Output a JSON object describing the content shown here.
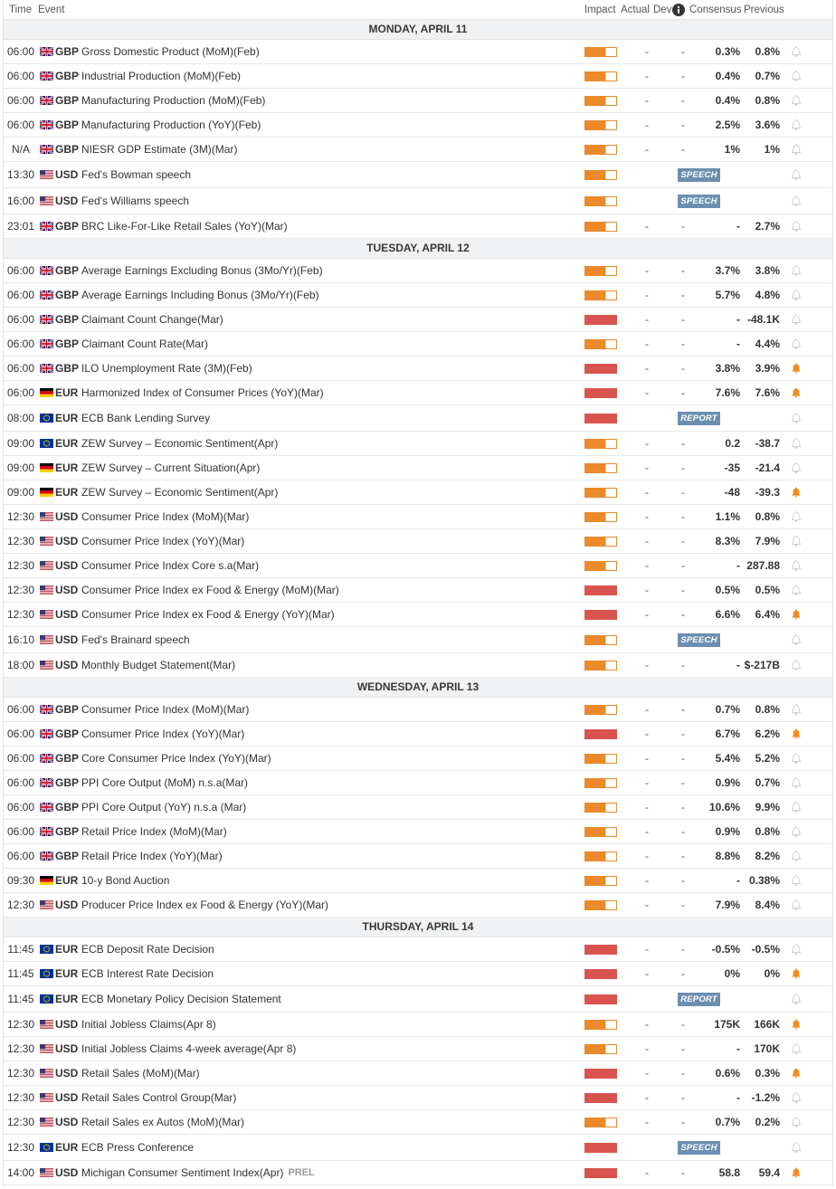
{
  "header": {
    "time": "Time",
    "event": "Event",
    "impact": "Impact",
    "actual": "Actual",
    "dev": "Dev",
    "consensus": "Consensus",
    "previous": "Previous",
    "info_icon": "info-icon"
  },
  "colors": {
    "impact_medium": "#ea8a2b",
    "impact_high": "#d9544f",
    "badge": "#6c8fb0",
    "alert_on": "#f28c22",
    "alert_off": "#cdcdcd",
    "day_header_bg": "#f0f1f2",
    "text": "#333333"
  },
  "days": [
    {
      "label": "MONDAY, APRIL 11",
      "events": [
        {
          "time": "06:00",
          "flag": "uk-flag",
          "currency": "GBP",
          "event": "Gross Domestic Product (MoM)(Feb)",
          "impact": 2,
          "actual": "-",
          "dev": "-",
          "consensus": "0.3%",
          "previous": "0.8%",
          "alert": false
        },
        {
          "time": "06:00",
          "flag": "uk-flag",
          "currency": "GBP",
          "event": "Industrial Production (MoM)(Feb)",
          "impact": 2,
          "actual": "-",
          "dev": "-",
          "consensus": "0.4%",
          "previous": "0.7%",
          "alert": false
        },
        {
          "time": "06:00",
          "flag": "uk-flag",
          "currency": "GBP",
          "event": "Manufacturing Production (MoM)(Feb)",
          "impact": 2,
          "actual": "-",
          "dev": "-",
          "consensus": "0.4%",
          "previous": "0.8%",
          "alert": false
        },
        {
          "time": "06:00",
          "flag": "uk-flag",
          "currency": "GBP",
          "event": "Manufacturing Production (YoY)(Feb)",
          "impact": 2,
          "actual": "-",
          "dev": "-",
          "consensus": "2.5%",
          "previous": "3.6%",
          "alert": false
        },
        {
          "time": "N/A",
          "flag": "uk-flag",
          "currency": "GBP",
          "event": "NIESR GDP Estimate (3M)(Mar)",
          "impact": 2,
          "actual": "-",
          "dev": "-",
          "consensus": "1%",
          "previous": "1%",
          "alert": false
        },
        {
          "time": "13:30",
          "flag": "us-flag",
          "currency": "USD",
          "event": "Fed's Bowman speech",
          "impact": 2,
          "badge": "SPEECH",
          "alert": false
        },
        {
          "time": "16:00",
          "flag": "us-flag",
          "currency": "USD",
          "event": "Fed's Williams speech",
          "impact": 2,
          "badge": "SPEECH",
          "alert": false
        },
        {
          "time": "23:01",
          "flag": "uk-flag",
          "currency": "GBP",
          "event": "BRC Like-For-Like Retail Sales (YoY)(Mar)",
          "impact": 2,
          "actual": "-",
          "dev": "-",
          "consensus": "-",
          "previous": "2.7%",
          "alert": false
        }
      ]
    },
    {
      "label": "TUESDAY, APRIL 12",
      "events": [
        {
          "time": "06:00",
          "flag": "uk-flag",
          "currency": "GBP",
          "event": "Average Earnings Excluding Bonus (3Mo/Yr)(Feb)",
          "impact": 2,
          "actual": "-",
          "dev": "-",
          "consensus": "3.7%",
          "previous": "3.8%",
          "alert": false
        },
        {
          "time": "06:00",
          "flag": "uk-flag",
          "currency": "GBP",
          "event": "Average Earnings Including Bonus (3Mo/Yr)(Feb)",
          "impact": 2,
          "actual": "-",
          "dev": "-",
          "consensus": "5.7%",
          "previous": "4.8%",
          "alert": false
        },
        {
          "time": "06:00",
          "flag": "uk-flag",
          "currency": "GBP",
          "event": "Claimant Count Change(Mar)",
          "impact": 3,
          "actual": "-",
          "dev": "-",
          "consensus": "-",
          "previous": "-48.1K",
          "alert": false
        },
        {
          "time": "06:00",
          "flag": "uk-flag",
          "currency": "GBP",
          "event": "Claimant Count Rate(Mar)",
          "impact": 2,
          "actual": "-",
          "dev": "-",
          "consensus": "-",
          "previous": "4.4%",
          "alert": false
        },
        {
          "time": "06:00",
          "flag": "uk-flag",
          "currency": "GBP",
          "event": "ILO Unemployment Rate (3M)(Feb)",
          "impact": 3,
          "actual": "-",
          "dev": "-",
          "consensus": "3.8%",
          "previous": "3.9%",
          "alert": true
        },
        {
          "time": "06:00",
          "flag": "de-flag",
          "currency": "EUR",
          "event": "Harmonized Index of Consumer Prices (YoY)(Mar)",
          "impact": 3,
          "actual": "-",
          "dev": "-",
          "consensus": "7.6%",
          "previous": "7.6%",
          "alert": true
        },
        {
          "time": "08:00",
          "flag": "eu-flag",
          "currency": "EUR",
          "event": "ECB Bank Lending Survey",
          "impact": 3,
          "badge": "REPORT",
          "alert": false
        },
        {
          "time": "09:00",
          "flag": "eu-flag",
          "currency": "EUR",
          "event": "ZEW Survey – Economic Sentiment(Apr)",
          "impact": 2,
          "actual": "-",
          "dev": "-",
          "consensus": "0.2",
          "previous": "-38.7",
          "alert": false
        },
        {
          "time": "09:00",
          "flag": "de-flag",
          "currency": "EUR",
          "event": "ZEW Survey – Current Situation(Apr)",
          "impact": 2,
          "actual": "-",
          "dev": "-",
          "consensus": "-35",
          "previous": "-21.4",
          "alert": false
        },
        {
          "time": "09:00",
          "flag": "de-flag",
          "currency": "EUR",
          "event": "ZEW Survey – Economic Sentiment(Apr)",
          "impact": 2,
          "actual": "-",
          "dev": "-",
          "consensus": "-48",
          "previous": "-39.3",
          "alert": true
        },
        {
          "time": "12:30",
          "flag": "us-flag",
          "currency": "USD",
          "event": "Consumer Price Index (MoM)(Mar)",
          "impact": 2,
          "actual": "-",
          "dev": "-",
          "consensus": "1.1%",
          "previous": "0.8%",
          "alert": false
        },
        {
          "time": "12:30",
          "flag": "us-flag",
          "currency": "USD",
          "event": "Consumer Price Index (YoY)(Mar)",
          "impact": 2,
          "actual": "-",
          "dev": "-",
          "consensus": "8.3%",
          "previous": "7.9%",
          "alert": false
        },
        {
          "time": "12:30",
          "flag": "us-flag",
          "currency": "USD",
          "event": "Consumer Price Index Core s.a(Mar)",
          "impact": 2,
          "actual": "-",
          "dev": "-",
          "consensus": "-",
          "previous": "287.88",
          "alert": false
        },
        {
          "time": "12:30",
          "flag": "us-flag",
          "currency": "USD",
          "event": "Consumer Price Index ex Food & Energy (MoM)(Mar)",
          "impact": 3,
          "actual": "-",
          "dev": "-",
          "consensus": "0.5%",
          "previous": "0.5%",
          "alert": false
        },
        {
          "time": "12:30",
          "flag": "us-flag",
          "currency": "USD",
          "event": "Consumer Price Index ex Food & Energy (YoY)(Mar)",
          "impact": 3,
          "actual": "-",
          "dev": "-",
          "consensus": "6.6%",
          "previous": "6.4%",
          "alert": true
        },
        {
          "time": "16:10",
          "flag": "us-flag",
          "currency": "USD",
          "event": "Fed's Brainard speech",
          "impact": 2,
          "badge": "SPEECH",
          "alert": false
        },
        {
          "time": "18:00",
          "flag": "us-flag",
          "currency": "USD",
          "event": "Monthly Budget Statement(Mar)",
          "impact": 2,
          "actual": "-",
          "dev": "-",
          "consensus": "-",
          "previous": "$-217B",
          "alert": false
        }
      ]
    },
    {
      "label": "WEDNESDAY, APRIL 13",
      "events": [
        {
          "time": "06:00",
          "flag": "uk-flag",
          "currency": "GBP",
          "event": "Consumer Price Index (MoM)(Mar)",
          "impact": 2,
          "actual": "-",
          "dev": "-",
          "consensus": "0.7%",
          "previous": "0.8%",
          "alert": false
        },
        {
          "time": "06:00",
          "flag": "uk-flag",
          "currency": "GBP",
          "event": "Consumer Price Index (YoY)(Mar)",
          "impact": 3,
          "actual": "-",
          "dev": "-",
          "consensus": "6.7%",
          "previous": "6.2%",
          "alert": true
        },
        {
          "time": "06:00",
          "flag": "uk-flag",
          "currency": "GBP",
          "event": "Core Consumer Price Index (YoY)(Mar)",
          "impact": 2,
          "actual": "-",
          "dev": "-",
          "consensus": "5.4%",
          "previous": "5.2%",
          "alert": false
        },
        {
          "time": "06:00",
          "flag": "uk-flag",
          "currency": "GBP",
          "event": "PPI Core Output (MoM) n.s.a(Mar)",
          "impact": 2,
          "actual": "-",
          "dev": "-",
          "consensus": "0.9%",
          "previous": "0.7%",
          "alert": false
        },
        {
          "time": "06:00",
          "flag": "uk-flag",
          "currency": "GBP",
          "event": "PPI Core Output (YoY) n.s.a (Mar)",
          "impact": 2,
          "actual": "-",
          "dev": "-",
          "consensus": "10.6%",
          "previous": "9.9%",
          "alert": false
        },
        {
          "time": "06:00",
          "flag": "uk-flag",
          "currency": "GBP",
          "event": "Retail Price Index (MoM)(Mar)",
          "impact": 2,
          "actual": "-",
          "dev": "-",
          "consensus": "0.9%",
          "previous": "0.8%",
          "alert": false
        },
        {
          "time": "06:00",
          "flag": "uk-flag",
          "currency": "GBP",
          "event": "Retail Price Index (YoY)(Mar)",
          "impact": 2,
          "actual": "-",
          "dev": "-",
          "consensus": "8.8%",
          "previous": "8.2%",
          "alert": false
        },
        {
          "time": "09:30",
          "flag": "de-flag",
          "currency": "EUR",
          "event": "10-y Bond Auction",
          "impact": 2,
          "actual": "-",
          "dev": "-",
          "consensus": "-",
          "previous": "0.38%",
          "alert": false
        },
        {
          "time": "12:30",
          "flag": "us-flag",
          "currency": "USD",
          "event": "Producer Price Index ex Food & Energy (YoY)(Mar)",
          "impact": 2,
          "actual": "-",
          "dev": "-",
          "consensus": "7.9%",
          "previous": "8.4%",
          "alert": false
        }
      ]
    },
    {
      "label": "THURSDAY, APRIL 14",
      "events": [
        {
          "time": "11:45",
          "flag": "eu-flag",
          "currency": "EUR",
          "event": "ECB Deposit Rate Decision",
          "impact": 3,
          "actual": "-",
          "dev": "-",
          "consensus": "-0.5%",
          "previous": "-0.5%",
          "alert": false
        },
        {
          "time": "11:45",
          "flag": "eu-flag",
          "currency": "EUR",
          "event": "ECB Interest Rate Decision",
          "impact": 3,
          "actual": "-",
          "dev": "-",
          "consensus": "0%",
          "previous": "0%",
          "alert": true
        },
        {
          "time": "11:45",
          "flag": "eu-flag",
          "currency": "EUR",
          "event": "ECB Monetary Policy Decision Statement",
          "impact": 3,
          "badge": "REPORT",
          "alert": false
        },
        {
          "time": "12:30",
          "flag": "us-flag",
          "currency": "USD",
          "event": "Initial Jobless Claims(Apr 8)",
          "impact": 2,
          "actual": "-",
          "dev": "-",
          "consensus": "175K",
          "previous": "166K",
          "alert": true
        },
        {
          "time": "12:30",
          "flag": "us-flag",
          "currency": "USD",
          "event": "Initial Jobless Claims 4-week average(Apr 8)",
          "impact": 2,
          "actual": "-",
          "dev": "-",
          "consensus": "-",
          "previous": "170K",
          "alert": false
        },
        {
          "time": "12:30",
          "flag": "us-flag",
          "currency": "USD",
          "event": "Retail Sales (MoM)(Mar)",
          "impact": 3,
          "actual": "-",
          "dev": "-",
          "consensus": "0.6%",
          "previous": "0.3%",
          "alert": true
        },
        {
          "time": "12:30",
          "flag": "us-flag",
          "currency": "USD",
          "event": "Retail Sales Control Group(Mar)",
          "impact": 3,
          "actual": "-",
          "dev": "-",
          "consensus": "-",
          "previous": "-1.2%",
          "alert": false
        },
        {
          "time": "12:30",
          "flag": "us-flag",
          "currency": "USD",
          "event": "Retail Sales ex Autos (MoM)(Mar)",
          "impact": 2,
          "actual": "-",
          "dev": "-",
          "consensus": "0.7%",
          "previous": "0.2%",
          "alert": false
        },
        {
          "time": "12:30",
          "flag": "eu-flag",
          "currency": "EUR",
          "event": "ECB Press Conference",
          "impact": 3,
          "badge": "SPEECH",
          "alert": false
        },
        {
          "time": "14:00",
          "flag": "us-flag",
          "currency": "USD",
          "event": "Michigan Consumer Sentiment Index(Apr)",
          "suffix": "PREL",
          "impact": 3,
          "actual": "-",
          "dev": "-",
          "consensus": "58.8",
          "previous": "59.4",
          "alert": true
        }
      ]
    }
  ]
}
